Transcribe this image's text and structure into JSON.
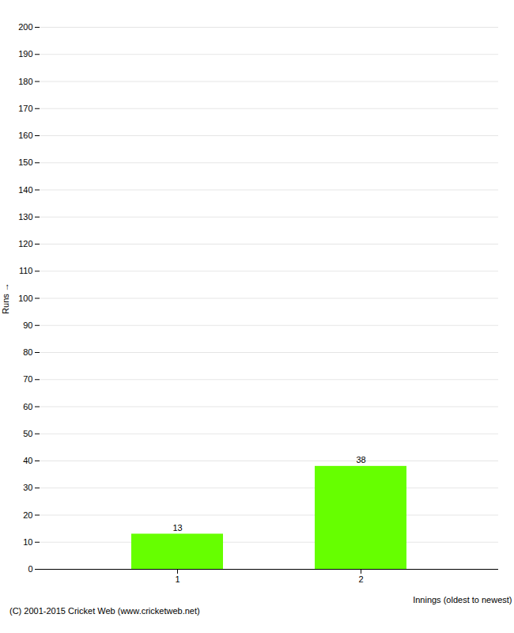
{
  "chart_data": {
    "type": "bar",
    "categories": [
      "1",
      "2"
    ],
    "values": [
      13,
      38
    ],
    "color": "#66ff00",
    "xlabel": "Innings (oldest to newest)",
    "ylabel": "Runs",
    "ylim": [
      0,
      200
    ],
    "yticks": [
      0,
      10,
      20,
      30,
      40,
      50,
      60,
      70,
      80,
      90,
      100,
      110,
      120,
      130,
      140,
      150,
      160,
      170,
      180,
      190,
      200
    ],
    "grid": true,
    "data_labels": true,
    "annotations": [
      "(C) 2001-2015 Cricket Web (www.cricketweb.net)"
    ]
  }
}
